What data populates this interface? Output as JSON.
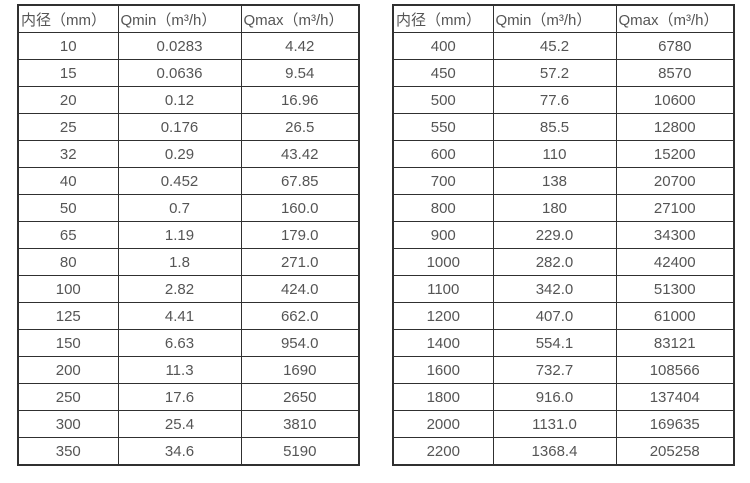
{
  "colors": {
    "border": "#303030",
    "text": "#555555",
    "background": "#ffffff"
  },
  "tables": [
    {
      "name": "flow-rate-table-small-diameters",
      "columns": [
        "内径（mm）",
        "Qmin（m³/h）",
        "Qmax（m³/h）"
      ],
      "rows": [
        [
          "10",
          "0.0283",
          "4.42"
        ],
        [
          "15",
          "0.0636",
          "9.54"
        ],
        [
          "20",
          "0.12",
          "16.96"
        ],
        [
          "25",
          "0.176",
          "26.5"
        ],
        [
          "32",
          "0.29",
          "43.42"
        ],
        [
          "40",
          "0.452",
          "67.85"
        ],
        [
          "50",
          "0.7",
          "160.0"
        ],
        [
          "65",
          "1.19",
          "179.0"
        ],
        [
          "80",
          "1.8",
          "271.0"
        ],
        [
          "100",
          "2.82",
          "424.0"
        ],
        [
          "125",
          "4.41",
          "662.0"
        ],
        [
          "150",
          "6.63",
          "954.0"
        ],
        [
          "200",
          "11.3",
          "1690"
        ],
        [
          "250",
          "17.6",
          "2650"
        ],
        [
          "300",
          "25.4",
          "3810"
        ],
        [
          "350",
          "34.6",
          "5190"
        ]
      ]
    },
    {
      "name": "flow-rate-table-large-diameters",
      "columns": [
        "内径（mm）",
        "Qmin（m³/h）",
        "Qmax（m³/h）"
      ],
      "rows": [
        [
          "400",
          "45.2",
          "6780"
        ],
        [
          "450",
          "57.2",
          "8570"
        ],
        [
          "500",
          "77.6",
          "10600"
        ],
        [
          "550",
          "85.5",
          "12800"
        ],
        [
          "600",
          "110",
          "15200"
        ],
        [
          "700",
          "138",
          "20700"
        ],
        [
          "800",
          "180",
          "27100"
        ],
        [
          "900",
          "229.0",
          "34300"
        ],
        [
          "1000",
          "282.0",
          "42400"
        ],
        [
          "1100",
          "342.0",
          "51300"
        ],
        [
          "1200",
          "407.0",
          "61000"
        ],
        [
          "1400",
          "554.1",
          "83121"
        ],
        [
          "1600",
          "732.7",
          "108566"
        ],
        [
          "1800",
          "916.0",
          "137404"
        ],
        [
          "2000",
          "1131.0",
          "169635"
        ],
        [
          "2200",
          "1368.4",
          "205258"
        ]
      ]
    }
  ]
}
